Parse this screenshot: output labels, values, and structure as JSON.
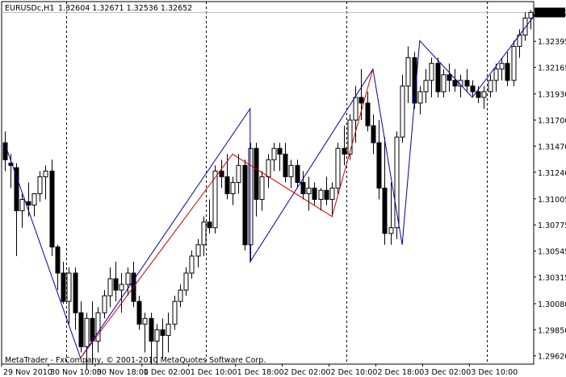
{
  "header": {
    "symbol": "EURUSDc,H1",
    "ohlc": "1.32604 1.32671 1.32536 1.32652"
  },
  "footer": {
    "copyright": "MetaTrader - FxCompany, © 2001-2010 MetaQuotes Software Corp."
  },
  "colors": {
    "background": "#ffffff",
    "candle": "#000000",
    "zigzag_blue": "#0000aa",
    "zigzag_red": "#cc0000",
    "price_line": "#c0c0c0"
  },
  "chart_data": {
    "type": "candlestick",
    "current_price": "1.32652",
    "price_ticks": [
      "1.32395",
      "1.32165",
      "1.31930",
      "1.31700",
      "1.31470",
      "1.31240",
      "1.31005",
      "1.30775",
      "1.30545",
      "1.30315",
      "1.30080",
      "1.29850",
      "1.29620"
    ],
    "time_ticks": [
      "29 Nov 2010",
      "30 Nov 10:00",
      "30 Nov 18:00",
      "1 Dec 02:00",
      "1 Dec 10:00",
      "1 Dec 18:00",
      "2 Dec 02:00",
      "2 Dec 10:00",
      "2 Dec 18:00",
      "3 Dec 02:00",
      "3 Dec 10:00"
    ],
    "day_separators": [
      "30 Nov 00:00",
      "1 Dec 00:00",
      "2 Dec 00:00",
      "3 Dec 00:00"
    ],
    "candles": [
      {
        "o": 1.315,
        "h": 1.316,
        "l": 1.3125,
        "c": 1.3135
      },
      {
        "o": 1.3132,
        "h": 1.314,
        "l": 1.311,
        "c": 1.313
      },
      {
        "o": 1.3128,
        "h": 1.3132,
        "l": 1.305,
        "c": 1.309
      },
      {
        "o": 1.309,
        "h": 1.3105,
        "l": 1.3075,
        "c": 1.31
      },
      {
        "o": 1.3098,
        "h": 1.3115,
        "l": 1.3085,
        "c": 1.3095
      },
      {
        "o": 1.3095,
        "h": 1.3105,
        "l": 1.3085,
        "c": 1.3105
      },
      {
        "o": 1.3105,
        "h": 1.3125,
        "l": 1.3098,
        "c": 1.312
      },
      {
        "o": 1.312,
        "h": 1.313,
        "l": 1.31,
        "c": 1.3125
      },
      {
        "o": 1.3125,
        "h": 1.3135,
        "l": 1.305,
        "c": 1.3058
      },
      {
        "o": 1.3058,
        "h": 1.306,
        "l": 1.302,
        "c": 1.3035
      },
      {
        "o": 1.3035,
        "h": 1.3045,
        "l": 1.3008,
        "c": 1.301
      },
      {
        "o": 1.301,
        "h": 1.304,
        "l": 1.299,
        "c": 1.3035
      },
      {
        "o": 1.3035,
        "h": 1.304,
        "l": 1.2985,
        "c": 1.3
      },
      {
        "o": 1.3,
        "h": 1.301,
        "l": 1.2965,
        "c": 1.297
      },
      {
        "o": 1.297,
        "h": 1.3,
        "l": 1.295,
        "c": 1.2995
      },
      {
        "o": 1.2995,
        "h": 1.301,
        "l": 1.2955,
        "c": 1.2975
      },
      {
        "o": 1.2975,
        "h": 1.3005,
        "l": 1.2965,
        "c": 1.3
      },
      {
        "o": 1.3,
        "h": 1.302,
        "l": 1.2995,
        "c": 1.3015
      },
      {
        "o": 1.3015,
        "h": 1.304,
        "l": 1.3005,
        "c": 1.303
      },
      {
        "o": 1.303,
        "h": 1.3045,
        "l": 1.301,
        "c": 1.302
      },
      {
        "o": 1.302,
        "h": 1.3035,
        "l": 1.3,
        "c": 1.3025
      },
      {
        "o": 1.3025,
        "h": 1.304,
        "l": 1.3015,
        "c": 1.3035
      },
      {
        "o": 1.3035,
        "h": 1.3045,
        "l": 1.3005,
        "c": 1.301
      },
      {
        "o": 1.301,
        "h": 1.3015,
        "l": 1.2985,
        "c": 1.299
      },
      {
        "o": 1.299,
        "h": 1.3,
        "l": 1.2965,
        "c": 1.2995
      },
      {
        "o": 1.2995,
        "h": 1.3,
        "l": 1.2955,
        "c": 1.2975
      },
      {
        "o": 1.2975,
        "h": 1.299,
        "l": 1.2955,
        "c": 1.2985
      },
      {
        "o": 1.2985,
        "h": 1.2995,
        "l": 1.296,
        "c": 1.298
      },
      {
        "o": 1.298,
        "h": 1.3,
        "l": 1.2965,
        "c": 1.299
      },
      {
        "o": 1.299,
        "h": 1.3015,
        "l": 1.2985,
        "c": 1.301
      },
      {
        "o": 1.301,
        "h": 1.3025,
        "l": 1.3005,
        "c": 1.302
      },
      {
        "o": 1.302,
        "h": 1.304,
        "l": 1.3015,
        "c": 1.3035
      },
      {
        "o": 1.3035,
        "h": 1.3055,
        "l": 1.303,
        "c": 1.305
      },
      {
        "o": 1.305,
        "h": 1.3065,
        "l": 1.304,
        "c": 1.306
      },
      {
        "o": 1.306,
        "h": 1.3085,
        "l": 1.305,
        "c": 1.308
      },
      {
        "o": 1.308,
        "h": 1.31,
        "l": 1.307,
        "c": 1.3075
      },
      {
        "o": 1.3075,
        "h": 1.313,
        "l": 1.307,
        "c": 1.3125
      },
      {
        "o": 1.3125,
        "h": 1.3135,
        "l": 1.311,
        "c": 1.312
      },
      {
        "o": 1.312,
        "h": 1.314,
        "l": 1.31,
        "c": 1.3105
      },
      {
        "o": 1.3105,
        "h": 1.312,
        "l": 1.3095,
        "c": 1.3115
      },
      {
        "o": 1.3115,
        "h": 1.314,
        "l": 1.3105,
        "c": 1.313
      },
      {
        "o": 1.313,
        "h": 1.3135,
        "l": 1.3055,
        "c": 1.306
      },
      {
        "o": 1.306,
        "h": 1.315,
        "l": 1.3045,
        "c": 1.3145
      },
      {
        "o": 1.3145,
        "h": 1.315,
        "l": 1.3085,
        "c": 1.31
      },
      {
        "o": 1.31,
        "h": 1.3125,
        "l": 1.309,
        "c": 1.312
      },
      {
        "o": 1.312,
        "h": 1.314,
        "l": 1.311,
        "c": 1.3135
      },
      {
        "o": 1.3135,
        "h": 1.315,
        "l": 1.3125,
        "c": 1.3145
      },
      {
        "o": 1.3145,
        "h": 1.315,
        "l": 1.3125,
        "c": 1.314
      },
      {
        "o": 1.314,
        "h": 1.315,
        "l": 1.3115,
        "c": 1.312
      },
      {
        "o": 1.312,
        "h": 1.3135,
        "l": 1.311,
        "c": 1.313
      },
      {
        "o": 1.313,
        "h": 1.3135,
        "l": 1.311,
        "c": 1.3115
      },
      {
        "o": 1.3115,
        "h": 1.3125,
        "l": 1.31,
        "c": 1.3105
      },
      {
        "o": 1.3105,
        "h": 1.312,
        "l": 1.309,
        "c": 1.311
      },
      {
        "o": 1.311,
        "h": 1.3115,
        "l": 1.3095,
        "c": 1.31
      },
      {
        "o": 1.31,
        "h": 1.311,
        "l": 1.309,
        "c": 1.3108
      },
      {
        "o": 1.3108,
        "h": 1.312,
        "l": 1.3095,
        "c": 1.31
      },
      {
        "o": 1.31,
        "h": 1.3115,
        "l": 1.3085,
        "c": 1.311
      },
      {
        "o": 1.311,
        "h": 1.315,
        "l": 1.3105,
        "c": 1.3145
      },
      {
        "o": 1.3145,
        "h": 1.3165,
        "l": 1.313,
        "c": 1.314
      },
      {
        "o": 1.314,
        "h": 1.3175,
        "l": 1.3135,
        "c": 1.317
      },
      {
        "o": 1.317,
        "h": 1.32,
        "l": 1.315,
        "c": 1.319
      },
      {
        "o": 1.319,
        "h": 1.3215,
        "l": 1.317,
        "c": 1.3185
      },
      {
        "o": 1.3185,
        "h": 1.3195,
        "l": 1.316,
        "c": 1.3165
      },
      {
        "o": 1.3165,
        "h": 1.3175,
        "l": 1.314,
        "c": 1.315
      },
      {
        "o": 1.315,
        "h": 1.317,
        "l": 1.31,
        "c": 1.311
      },
      {
        "o": 1.311,
        "h": 1.3155,
        "l": 1.306,
        "c": 1.307
      },
      {
        "o": 1.307,
        "h": 1.3115,
        "l": 1.306,
        "c": 1.3075
      },
      {
        "o": 1.3075,
        "h": 1.316,
        "l": 1.3065,
        "c": 1.3155
      },
      {
        "o": 1.3155,
        "h": 1.321,
        "l": 1.315,
        "c": 1.32
      },
      {
        "o": 1.32,
        "h": 1.3235,
        "l": 1.3185,
        "c": 1.3225
      },
      {
        "o": 1.3225,
        "h": 1.323,
        "l": 1.318,
        "c": 1.3185
      },
      {
        "o": 1.3185,
        "h": 1.32,
        "l": 1.3175,
        "c": 1.3195
      },
      {
        "o": 1.3195,
        "h": 1.3215,
        "l": 1.3185,
        "c": 1.3205
      },
      {
        "o": 1.3205,
        "h": 1.3225,
        "l": 1.319,
        "c": 1.322
      },
      {
        "o": 1.322,
        "h": 1.3225,
        "l": 1.319,
        "c": 1.3195
      },
      {
        "o": 1.3195,
        "h": 1.3215,
        "l": 1.319,
        "c": 1.321
      },
      {
        "o": 1.321,
        "h": 1.322,
        "l": 1.3195,
        "c": 1.3205
      },
      {
        "o": 1.3205,
        "h": 1.3215,
        "l": 1.3195,
        "c": 1.32
      },
      {
        "o": 1.32,
        "h": 1.321,
        "l": 1.319,
        "c": 1.3205
      },
      {
        "o": 1.3205,
        "h": 1.3215,
        "l": 1.3195,
        "c": 1.32
      },
      {
        "o": 1.32,
        "h": 1.3205,
        "l": 1.319,
        "c": 1.3195
      },
      {
        "o": 1.3195,
        "h": 1.32,
        "l": 1.3185,
        "c": 1.319
      },
      {
        "o": 1.319,
        "h": 1.32,
        "l": 1.318,
        "c": 1.3195
      },
      {
        "o": 1.3195,
        "h": 1.321,
        "l": 1.319,
        "c": 1.3205
      },
      {
        "o": 1.3205,
        "h": 1.322,
        "l": 1.3195,
        "c": 1.3215
      },
      {
        "o": 1.3215,
        "h": 1.3225,
        "l": 1.3205,
        "c": 1.322
      },
      {
        "o": 1.322,
        "h": 1.323,
        "l": 1.32,
        "c": 1.3205
      },
      {
        "o": 1.3205,
        "h": 1.324,
        "l": 1.32,
        "c": 1.3235
      },
      {
        "o": 1.3235,
        "h": 1.325,
        "l": 1.3225,
        "c": 1.3245
      },
      {
        "o": 1.3245,
        "h": 1.3265,
        "l": 1.324,
        "c": 1.326
      },
      {
        "o": 1.326,
        "h": 1.3267,
        "l": 1.325,
        "c": 1.3265
      }
    ],
    "zigzag_blue": [
      [
        0,
        1.315
      ],
      [
        13,
        1.296
      ],
      [
        42,
        1.318
      ],
      [
        42,
        1.3045
      ],
      [
        63,
        1.3215
      ],
      [
        68,
        1.306
      ],
      [
        71,
        1.324
      ],
      [
        80,
        1.319
      ],
      [
        91,
        1.3265
      ]
    ],
    "zigzag_red": [
      [
        13,
        1.296
      ],
      [
        39,
        1.314
      ],
      [
        56,
        1.3085
      ],
      [
        63,
        1.3215
      ]
    ]
  }
}
